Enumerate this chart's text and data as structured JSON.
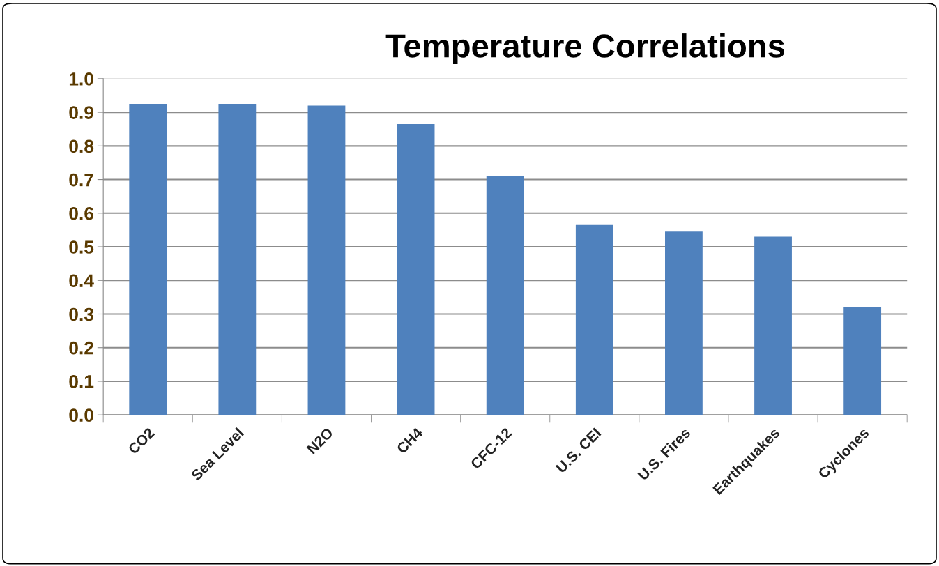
{
  "chart_data": {
    "type": "bar",
    "title": "Temperature Correlations",
    "categories": [
      "CO2",
      "Sea Level",
      "N2O",
      "CH4",
      "CFC-12",
      "U.S. CEI",
      "U.S. Fires",
      "Earthquakes",
      "Cyclones"
    ],
    "values": [
      0.925,
      0.925,
      0.92,
      0.865,
      0.71,
      0.565,
      0.545,
      0.53,
      0.32
    ],
    "color": "#4f81bd",
    "ylim": [
      0,
      1
    ],
    "yticks": [
      {
        "value": 0,
        "label": "0.0"
      },
      {
        "value": 0.1,
        "label": "0.1"
      },
      {
        "value": 0.2,
        "label": "0.2"
      },
      {
        "value": 0.3,
        "label": "0.3"
      },
      {
        "value": 0.4,
        "label": "0.4"
      },
      {
        "value": 0.5,
        "label": "0.5"
      },
      {
        "value": 0.6,
        "label": "0.6"
      },
      {
        "value": 0.7,
        "label": "0.7"
      },
      {
        "value": 0.8,
        "label": "0.8"
      },
      {
        "value": 0.9,
        "label": "0.9"
      },
      {
        "value": 1,
        "label": "1.0"
      }
    ],
    "grid": "y",
    "legend": false
  }
}
